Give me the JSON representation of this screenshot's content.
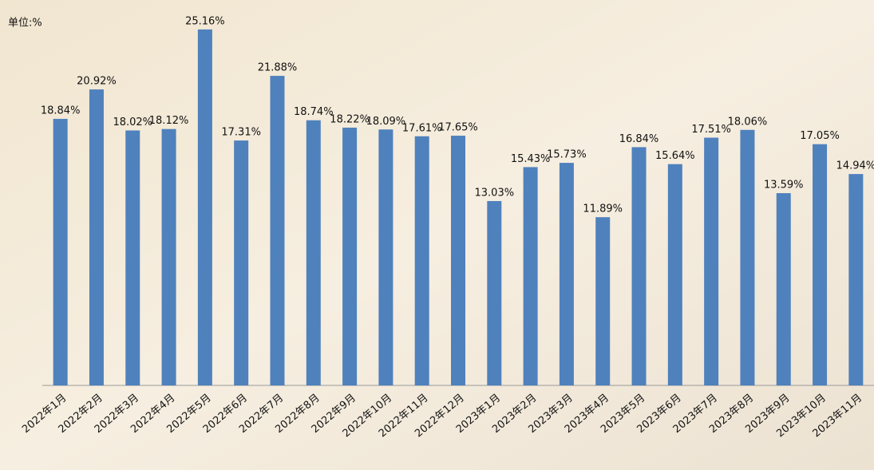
{
  "chart_data": {
    "type": "bar",
    "unit_label": "单位:%",
    "categories": [
      "2022年1月",
      "2022年2月",
      "2022年3月",
      "2022年4月",
      "2022年5月",
      "2022年6月",
      "2022年7月",
      "2022年8月",
      "2022年9月",
      "2022年10月",
      "2022年11月",
      "2022年12月",
      "2023年1月",
      "2023年2月",
      "2023年3月",
      "2023年4月",
      "2023年5月",
      "2023年6月",
      "2023年7月",
      "2023年8月",
      "2023年9月",
      "2023年10月",
      "2023年11月"
    ],
    "values": [
      18.84,
      20.92,
      18.02,
      18.12,
      25.16,
      17.31,
      21.88,
      18.74,
      18.22,
      18.09,
      17.61,
      17.65,
      13.03,
      15.43,
      15.73,
      11.89,
      16.84,
      15.64,
      17.51,
      18.06,
      13.59,
      17.05,
      14.94
    ],
    "value_labels": [
      "18.84%",
      "20.92%",
      "18.02%",
      "18.12%",
      "25.16%",
      "17.31%",
      "21.88%",
      "18.74%",
      "18.22%",
      "18.09%",
      "17.61%",
      "17.65%",
      "13.03%",
      "15.43%",
      "15.73%",
      "11.89%",
      "16.84%",
      "15.64%",
      "17.51%",
      "18.06%",
      "13.59%",
      "17.05%",
      "14.94%"
    ],
    "color": "#4f81bd",
    "ylim": [
      0,
      26
    ]
  }
}
